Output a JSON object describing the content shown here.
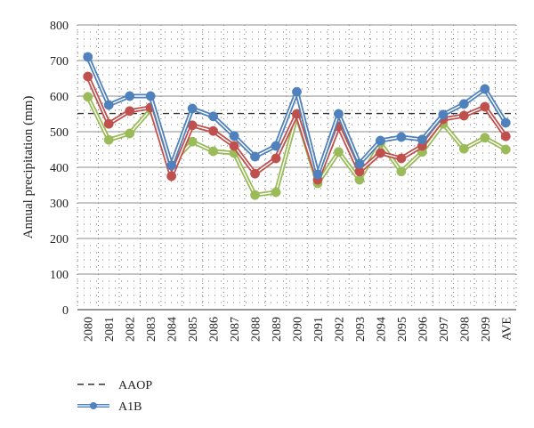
{
  "chart_data": {
    "type": "line",
    "title": "",
    "ylabel": "Annual precipitation (mm)",
    "xlabel": "",
    "ylim": [
      0,
      800
    ],
    "yticks": [
      0,
      100,
      200,
      300,
      400,
      500,
      600,
      700,
      800
    ],
    "grid": true,
    "categories": [
      "2080",
      "2081",
      "2082",
      "2083",
      "2084",
      "2085",
      "2086",
      "2087",
      "2088",
      "2089",
      "2090",
      "2091",
      "2092",
      "2093",
      "2094",
      "2095",
      "2096",
      "2097",
      "2098",
      "2099",
      "AVE"
    ],
    "reference_line": {
      "name": "AAOP",
      "value": 551,
      "style": "dashed",
      "color": "#333333"
    },
    "series": [
      {
        "name": "A1B",
        "color": "#4f81bd",
        "values": [
          710,
          575,
          600,
          600,
          405,
          565,
          543,
          488,
          430,
          460,
          612,
          380,
          550,
          410,
          475,
          485,
          478,
          548,
          578,
          620,
          525
        ]
      },
      {
        "color": "#c0504d",
        "values": [
          655,
          522,
          558,
          568,
          375,
          518,
          502,
          460,
          382,
          425,
          550,
          365,
          515,
          388,
          440,
          425,
          460,
          535,
          545,
          570,
          487
        ]
      },
      {
        "color": "#9bbb59",
        "values": [
          598,
          477,
          495,
          562,
          410,
          472,
          445,
          440,
          322,
          330,
          545,
          355,
          443,
          365,
          468,
          388,
          443,
          522,
          452,
          483,
          450
        ]
      }
    ],
    "legend_position": "bottom-left",
    "legend": [
      {
        "label": "AAOP",
        "style": "dashed"
      },
      {
        "label": "A1B",
        "style": "line-marker"
      }
    ]
  }
}
